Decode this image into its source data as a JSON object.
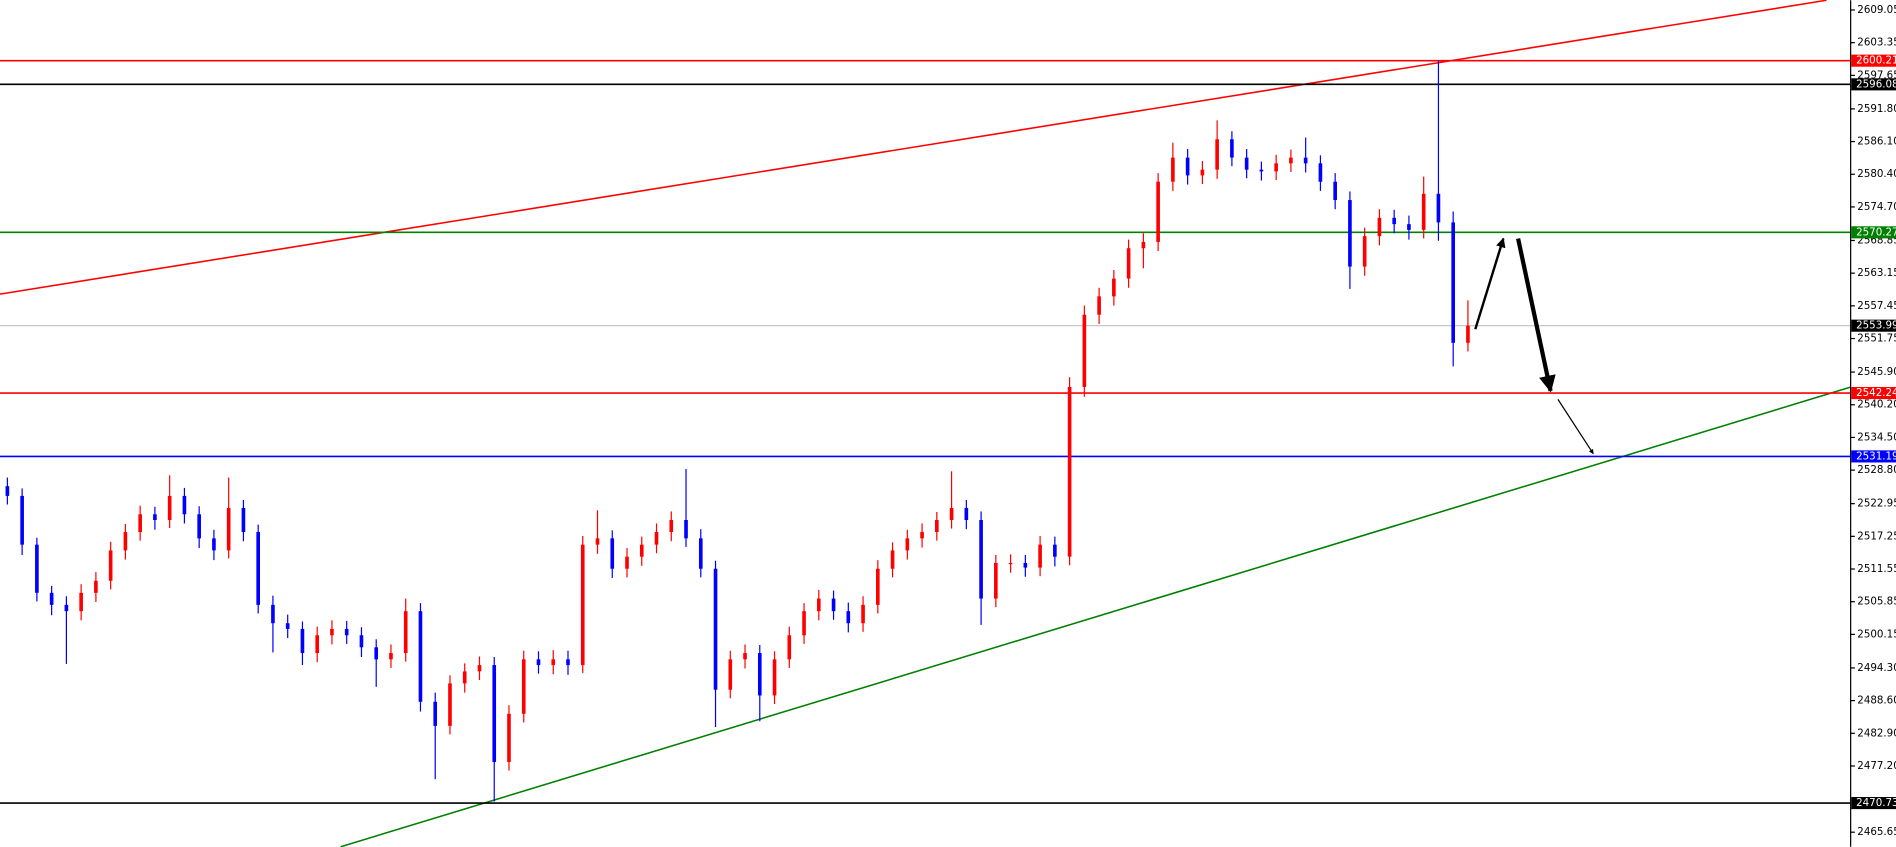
{
  "chart_data": {
    "type": "candlestick",
    "up_color": "#ff0000",
    "down_color": "#0000ff",
    "xlim": [
      0,
      125.4
    ],
    "ylim": [
      2463.12,
      2610.74
    ],
    "yticks": [
      2609.05,
      2603.35,
      2597.65,
      {
        "value": 2591.8,
        "label": "2591.80"
      },
      {
        "value": 2586.1,
        "label": "2586.10"
      },
      {
        "value": 2580.4,
        "label": "2580.40"
      },
      {
        "value": 2574.7,
        "label": "2574.70"
      },
      2568.85,
      2563.15,
      2557.45,
      2551.75,
      {
        "value": 2545.9,
        "label": "2545.90"
      },
      {
        "value": 2540.2,
        "label": "2540.20"
      },
      {
        "value": 2534.5,
        "label": "2534.50"
      },
      {
        "value": 2528.8,
        "label": "2528.80"
      },
      2522.95,
      2517.25,
      2511.55,
      2505.85,
      2500.15,
      {
        "value": 2494.3,
        "label": "2494.30"
      },
      {
        "value": 2488.6,
        "label": "2488.60"
      },
      {
        "value": 2482.9,
        "label": "2482.90"
      },
      {
        "value": 2477.2,
        "label": "2477.20"
      },
      2465.65
    ],
    "open": [
      2526.0,
      2524.3,
      2515.8,
      2507.4,
      2505.3,
      2504.2,
      2507.4,
      2509.5,
      2514.8,
      2518.0,
      2521.1,
      2520.1,
      2524.3,
      2521.1,
      2516.9,
      2514.8,
      2522.2,
      2518.0,
      2505.3,
      2502.1,
      2501.1,
      2496.9,
      2500.0,
      2501.1,
      2500.0,
      2497.9,
      2495.8,
      2496.9,
      2504.2,
      2488.4,
      2484.2,
      2491.6,
      2493.7,
      2494.8,
      2477.9,
      2486.3,
      2495.8,
      2494.8,
      2495.8,
      2494.8,
      2515.8,
      2516.9,
      2511.6,
      2513.7,
      2515.8,
      2518.0,
      2520.1,
      2516.9,
      2511.6,
      2490.5,
      2495.8,
      2496.9,
      2489.5,
      2495.8,
      2500.0,
      2504.2,
      2506.4,
      2504.2,
      2502.1,
      2505.3,
      2511.6,
      2514.8,
      2516.9,
      2518.0,
      2520.1,
      2522.2,
      2520.1,
      2506.4,
      2512.6,
      2512.6,
      2511.8,
      2515.8,
      2513.7,
      2543.3,
      2555.9,
      2559.1,
      2562.2,
      2567.5,
      2568.6,
      2579.1,
      2583.3,
      2580.2,
      2581.2,
      2586.5,
      2583.3,
      2581.2,
      2580.9,
      2582.3,
      2583.3,
      2582.3,
      2579.1,
      2575.9,
      2564.3,
      2569.6,
      2572.8,
      2571.7,
      2570.7,
      2577.0,
      2572.0,
      2551.0
    ],
    "high": [
      2527.5,
      2525.6,
      2517.0,
      2508.6,
      2506.8,
      2508.9,
      2511.0,
      2516.3,
      2519.4,
      2522.6,
      2522.4,
      2527.9,
      2525.7,
      2522.5,
      2518.4,
      2527.5,
      2523.6,
      2519.3,
      2506.9,
      2503.6,
      2502.4,
      2501.5,
      2502.6,
      2502.5,
      2501.4,
      2499.3,
      2498.4,
      2506.4,
      2505.6,
      2490.0,
      2493.0,
      2495.1,
      2496.3,
      2496.2,
      2487.8,
      2497.3,
      2497.2,
      2497.4,
      2497.3,
      2517.3,
      2521.8,
      2518.3,
      2515.2,
      2517.2,
      2519.5,
      2521.6,
      2529.0,
      2518.5,
      2513.0,
      2497.3,
      2498.4,
      2498.3,
      2497.2,
      2501.5,
      2505.6,
      2507.9,
      2507.8,
      2505.7,
      2506.8,
      2513.1,
      2516.2,
      2518.4,
      2519.5,
      2521.5,
      2528.6,
      2523.6,
      2521.6,
      2514.0,
      2514.1,
      2514.0,
      2517.3,
      2517.2,
      2545.0,
      2557.5,
      2560.6,
      2563.7,
      2569.0,
      2570.1,
      2580.6,
      2585.9,
      2584.8,
      2582.7,
      2589.8,
      2587.9,
      2584.8,
      2582.6,
      2583.8,
      2584.7,
      2586.8,
      2583.7,
      2580.6,
      2577.4,
      2571.1,
      2574.3,
      2574.2,
      2573.2,
      2580.0,
      2600.21,
      2573.9,
      2558.4
    ],
    "low": [
      2522.8,
      2514.0,
      2505.9,
      2503.5,
      2495.0,
      2502.6,
      2505.8,
      2508.0,
      2513.2,
      2516.5,
      2518.4,
      2518.7,
      2519.5,
      2515.2,
      2513.1,
      2513.4,
      2516.4,
      2503.8,
      2497.0,
      2499.5,
      2494.8,
      2495.3,
      2498.4,
      2498.5,
      2496.2,
      2491.0,
      2494.3,
      2495.4,
      2486.7,
      2474.9,
      2482.7,
      2490.0,
      2492.2,
      2471.0,
      2476.4,
      2484.8,
      2493.3,
      2493.2,
      2493.1,
      2493.4,
      2514.2,
      2510.0,
      2510.1,
      2512.1,
      2514.3,
      2516.4,
      2515.4,
      2510.1,
      2484.0,
      2489.0,
      2494.2,
      2485.0,
      2488.0,
      2494.3,
      2498.5,
      2502.6,
      2502.7,
      2500.5,
      2500.6,
      2503.8,
      2510.1,
      2513.2,
      2515.3,
      2516.5,
      2518.6,
      2518.5,
      2501.8,
      2504.9,
      2510.9,
      2510.2,
      2510.3,
      2512.0,
      2512.2,
      2541.6,
      2554.3,
      2557.5,
      2560.6,
      2564.0,
      2567.0,
      2577.5,
      2578.6,
      2578.7,
      2579.6,
      2581.8,
      2579.7,
      2579.3,
      2579.4,
      2580.8,
      2580.7,
      2577.5,
      2574.3,
      2560.4,
      2562.7,
      2568.0,
      2570.1,
      2569.0,
      2569.2,
      2568.8,
      2546.9,
      2549.5
    ],
    "close": [
      2524.3,
      2515.8,
      2507.4,
      2505.3,
      2504.2,
      2507.4,
      2509.5,
      2514.8,
      2518.0,
      2521.1,
      2520.1,
      2524.3,
      2521.1,
      2516.9,
      2514.8,
      2522.2,
      2518.0,
      2505.3,
      2502.1,
      2501.1,
      2496.9,
      2500.0,
      2501.1,
      2500.0,
      2497.9,
      2495.8,
      2496.9,
      2504.2,
      2488.4,
      2484.2,
      2491.6,
      2493.7,
      2494.8,
      2477.9,
      2486.3,
      2495.8,
      2494.8,
      2495.8,
      2494.8,
      2515.8,
      2516.9,
      2511.6,
      2513.7,
      2515.8,
      2518.0,
      2520.1,
      2516.9,
      2511.6,
      2490.5,
      2495.8,
      2496.9,
      2489.5,
      2495.8,
      2500.0,
      2504.2,
      2506.4,
      2504.2,
      2502.1,
      2505.3,
      2511.6,
      2514.8,
      2516.9,
      2518.0,
      2520.1,
      2522.2,
      2520.1,
      2506.4,
      2512.6,
      2512.6,
      2511.8,
      2515.8,
      2513.7,
      2543.3,
      2555.9,
      2559.1,
      2562.2,
      2567.5,
      2568.6,
      2579.1,
      2583.3,
      2580.2,
      2581.2,
      2586.5,
      2583.3,
      2581.2,
      2580.9,
      2582.3,
      2583.3,
      2582.3,
      2579.1,
      2575.9,
      2564.3,
      2569.6,
      2572.8,
      2571.7,
      2570.7,
      2577.0,
      2572.0,
      2551.0,
      2553.99
    ],
    "levels": [
      {
        "value": 2600.21,
        "color": "#ff0000"
      },
      {
        "value": 2596.08,
        "color": "#000000"
      },
      {
        "value": 2570.27,
        "color": "#008000"
      },
      {
        "value": 2553.99,
        "color": "#c0c0c0"
      },
      {
        "value": 2542.24,
        "color": "#ff0000"
      },
      {
        "value": 2531.19,
        "color": "#0000ff"
      },
      {
        "value": 2470.73,
        "color": "#000000"
      }
    ],
    "trendlines": [
      {
        "x": [
          0,
          123.8
        ],
        "y": [
          2559.49,
          2610.74
        ],
        "color": "#ff0000"
      },
      {
        "x": [
          23.1,
          125.4
        ],
        "y": [
          2463.12,
          2543.25
        ],
        "color": "#008000"
      }
    ],
    "arrows": [
      {
        "x": [
          100,
          101.9
        ],
        "y": [
          2553.38,
          2569.19
        ]
      },
      {
        "x": [
          102.9,
          105.1
        ],
        "y": [
          2569.19,
          2542.62
        ]
      },
      {
        "x": [
          105.6,
          108.0
        ],
        "y": [
          2541.14,
          2531.65
        ]
      }
    ]
  }
}
